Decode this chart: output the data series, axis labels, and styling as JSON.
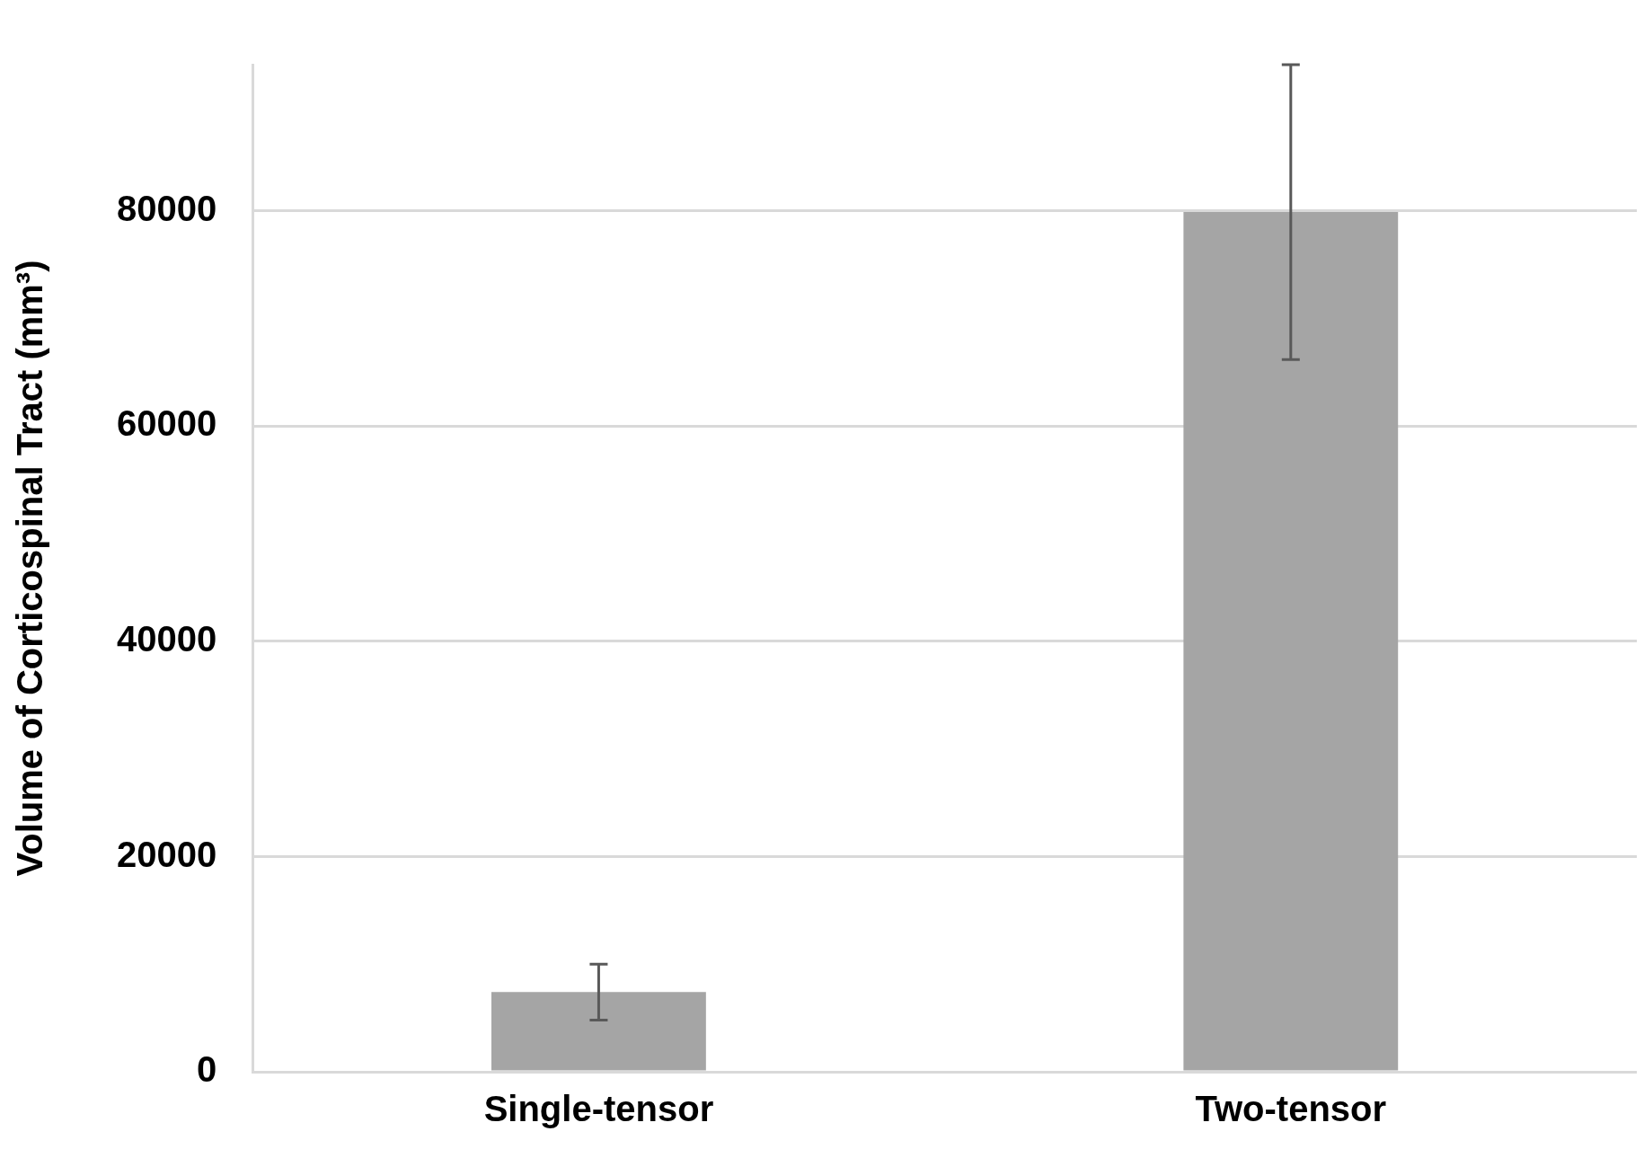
{
  "chart_data": {
    "type": "bar",
    "ylabel": "Volume of Corticospinal Tract (mm³)",
    "categories": [
      "Single-tensor",
      "Two-tensor"
    ],
    "values": [
      7400,
      79900
    ],
    "color": "#a5a5a5",
    "errors": [
      [
        4800,
        10000
      ],
      [
        66200,
        93600
      ]
    ],
    "ylim": [
      0,
      93600
    ],
    "yticks": [
      0,
      20000,
      40000,
      60000,
      80000
    ],
    "grid": "y",
    "legend": false
  }
}
